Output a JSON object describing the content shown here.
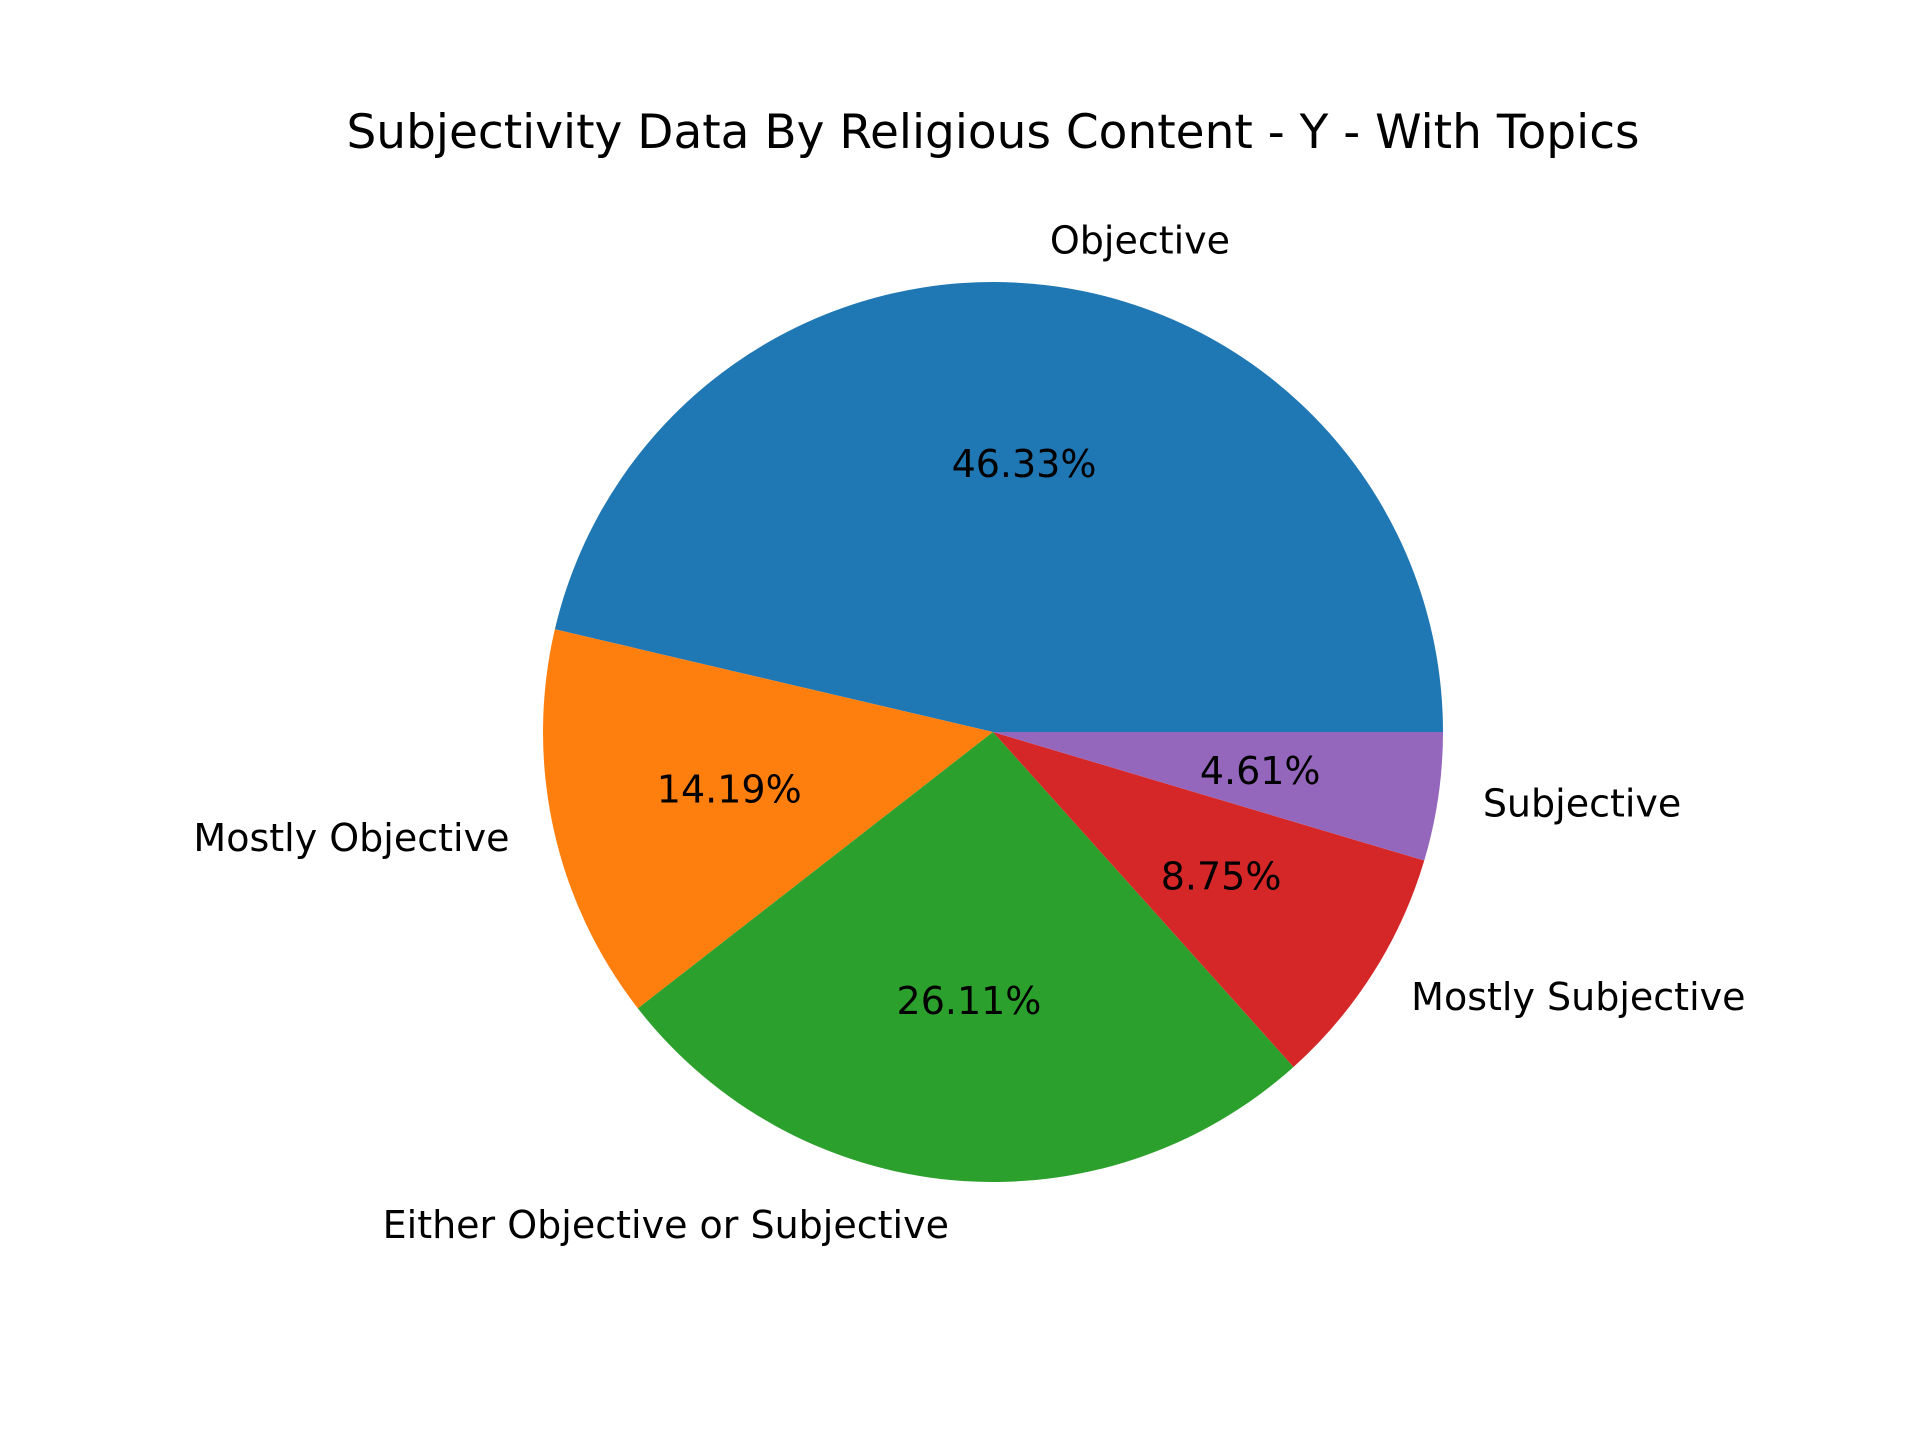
{
  "chart_data": {
    "type": "pie",
    "title": "Subjectivity Data By Religious Content - Y - With Topics",
    "slices": [
      {
        "label": "Objective",
        "value": 46.33,
        "pct_label": "46.33%",
        "color": "#1f77b4"
      },
      {
        "label": "Mostly Objective",
        "value": 14.19,
        "pct_label": "14.19%",
        "color": "#ff7f0e"
      },
      {
        "label": "Either Objective or Subjective",
        "value": 26.11,
        "pct_label": "26.11%",
        "color": "#2ca02c"
      },
      {
        "label": "Mostly Subjective",
        "value": 8.75,
        "pct_label": "8.75%",
        "color": "#d62728"
      },
      {
        "label": "Subjective",
        "value": 4.61,
        "pct_label": "4.61%",
        "color": "#9467bd"
      }
    ],
    "start_angle_deg": 0,
    "direction": "counterclockwise",
    "legend": "none"
  }
}
